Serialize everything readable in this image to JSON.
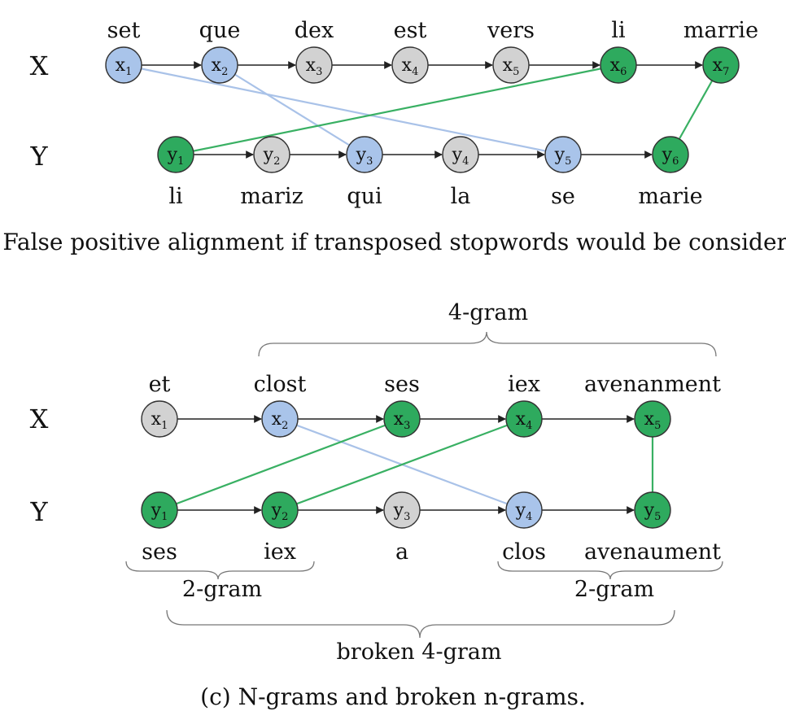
{
  "colors": {
    "blue": "#a9c4ea",
    "green": "#2eaa5e",
    "gray": "#d2d2d2",
    "blue_edge": "#a9c2e8",
    "green_edge": "#39b063",
    "stroke": "#333333"
  },
  "panel_b": {
    "caption": "(b) False positive alignment if transposed stopwords would be considered.",
    "row_x_label": "X",
    "row_y_label": "Y",
    "x_nodes": [
      {
        "id": "x1",
        "base": "x",
        "sub": "1",
        "word": "set",
        "color": "blue"
      },
      {
        "id": "x2",
        "base": "x",
        "sub": "2",
        "word": "que",
        "color": "blue"
      },
      {
        "id": "x3",
        "base": "x",
        "sub": "3",
        "word": "dex",
        "color": "gray"
      },
      {
        "id": "x4",
        "base": "x",
        "sub": "4",
        "word": "est",
        "color": "gray"
      },
      {
        "id": "x5",
        "base": "x",
        "sub": "5",
        "word": "vers",
        "color": "gray"
      },
      {
        "id": "x6",
        "base": "x",
        "sub": "6",
        "word": "li",
        "color": "green"
      },
      {
        "id": "x7",
        "base": "x",
        "sub": "7",
        "word": "marrie",
        "color": "green"
      }
    ],
    "y_nodes": [
      {
        "id": "y1",
        "base": "y",
        "sub": "1",
        "word": "li",
        "color": "green"
      },
      {
        "id": "y2",
        "base": "y",
        "sub": "2",
        "word": "mariz",
        "color": "gray"
      },
      {
        "id": "y3",
        "base": "y",
        "sub": "3",
        "word": "qui",
        "color": "blue"
      },
      {
        "id": "y4",
        "base": "y",
        "sub": "4",
        "word": "la",
        "color": "gray"
      },
      {
        "id": "y5",
        "base": "y",
        "sub": "5",
        "word": "se",
        "color": "blue"
      },
      {
        "id": "y6",
        "base": "y",
        "sub": "6",
        "word": "marie",
        "color": "green"
      }
    ],
    "alignments": [
      {
        "from": "x1",
        "to": "y5",
        "color": "blue"
      },
      {
        "from": "x2",
        "to": "y3",
        "color": "blue"
      },
      {
        "from": "x6",
        "to": "y1",
        "color": "green"
      },
      {
        "from": "x7",
        "to": "y6",
        "color": "green"
      }
    ]
  },
  "panel_c": {
    "caption": "(c) N-grams and broken n-grams.",
    "row_x_label": "X",
    "row_y_label": "Y",
    "x_nodes": [
      {
        "id": "x1",
        "base": "x",
        "sub": "1",
        "word": "et",
        "color": "gray"
      },
      {
        "id": "x2",
        "base": "x",
        "sub": "2",
        "word": "clost",
        "color": "blue"
      },
      {
        "id": "x3",
        "base": "x",
        "sub": "3",
        "word": "ses",
        "color": "green"
      },
      {
        "id": "x4",
        "base": "x",
        "sub": "4",
        "word": "iex",
        "color": "green"
      },
      {
        "id": "x5",
        "base": "x",
        "sub": "5",
        "word": "avenanment",
        "color": "green"
      }
    ],
    "y_nodes": [
      {
        "id": "y1",
        "base": "y",
        "sub": "1",
        "word": "ses",
        "color": "green"
      },
      {
        "id": "y2",
        "base": "y",
        "sub": "2",
        "word": "iex",
        "color": "green"
      },
      {
        "id": "y3",
        "base": "y",
        "sub": "3",
        "word": "a",
        "color": "gray"
      },
      {
        "id": "y4",
        "base": "y",
        "sub": "4",
        "word": "clos",
        "color": "blue"
      },
      {
        "id": "y5",
        "base": "y",
        "sub": "5",
        "word": "avenaument",
        "color": "green"
      }
    ],
    "alignments": [
      {
        "from": "x2",
        "to": "y4",
        "color": "blue"
      },
      {
        "from": "x3",
        "to": "y1",
        "color": "green"
      },
      {
        "from": "x4",
        "to": "y2",
        "color": "green"
      },
      {
        "from": "x5",
        "to": "y5",
        "color": "green"
      }
    ],
    "brace_labels": {
      "top_4gram": "4-gram",
      "left_2gram": "2-gram",
      "right_2gram": "2-gram",
      "broken_4gram": "broken 4-gram"
    }
  }
}
